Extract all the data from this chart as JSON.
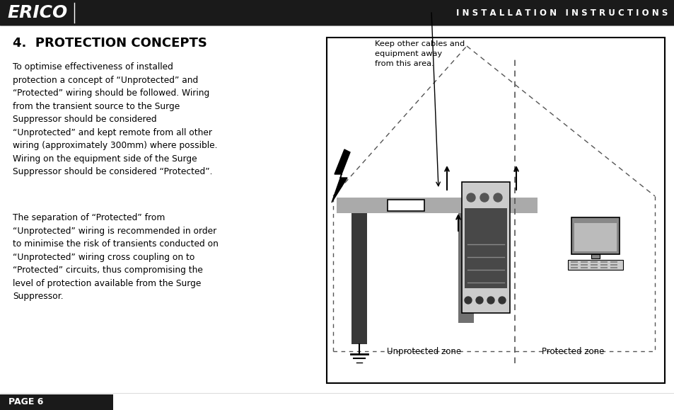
{
  "bg_color": "#ffffff",
  "header_bg": "#1a1a1a",
  "header_text_color": "#ffffff",
  "header_logo": "ERICO",
  "header_right": "I N S T A L L A T I O N   I N S T R U C T I O N S",
  "section_title": "4.  PROTECTION CONCEPTS",
  "body_text_1": "To optimise effectiveness of installed\nprotection a concept of “Unprotected” and\n“Protected” wiring should be followed. Wiring\nfrom the transient source to the Surge\nSuppressor should be considered\n“Unprotected” and kept remote from all other\nwiring (approximately 300mm) where possible.\nWiring on the equipment side of the Surge\nSuppressor should be considered “Protected”.",
  "body_text_2": "The separation of “Protected” from\n“Unprotected” wiring is recommended in order\nto minimise the risk of transients conducted on\n“Unprotected” wiring cross coupling on to\n“Protected” circuits, thus compromising the\nlevel of protection available from the Surge\nSuppressor.",
  "diagram_label_top": "Keep other cables and\nequipment away\nfrom this area.",
  "diagram_label_bottom_left": "Unprotected zone",
  "diagram_label_bottom_right": "Protected zone",
  "footer_bg": "#1a1a1a",
  "footer_text": "PAGE 6",
  "footer_text_color": "#ffffff"
}
